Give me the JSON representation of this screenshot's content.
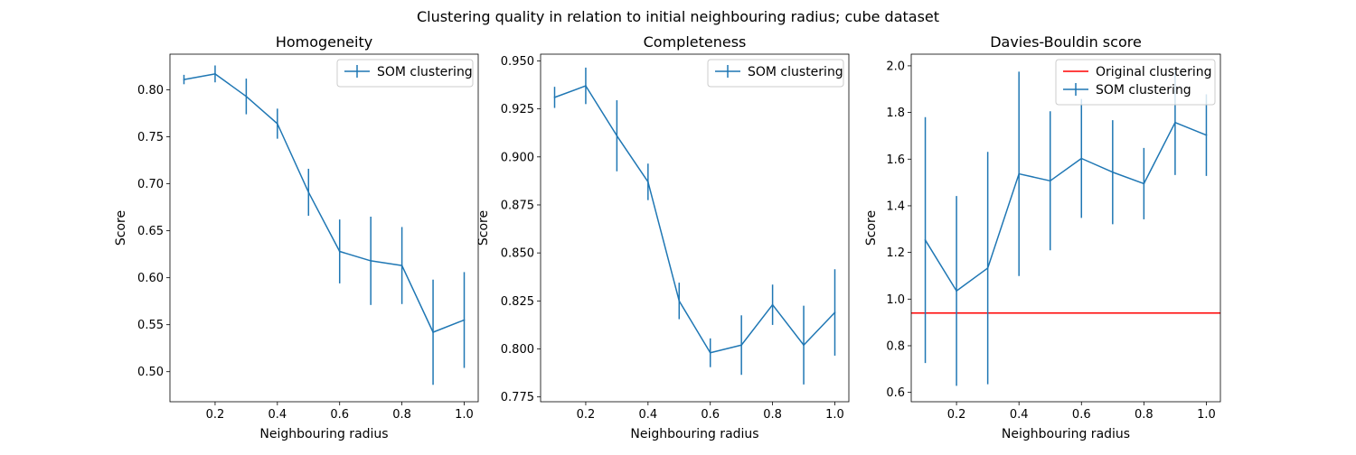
{
  "suptitle": "Clustering quality in relation to initial neighbouring radius; cube dataset",
  "colors": {
    "series": "#1f77b4",
    "reference": "#ff0000"
  },
  "chart_data": [
    {
      "type": "line",
      "title": "Homogeneity",
      "xlabel": "Neighbouring radius",
      "ylabel": "Score",
      "xlim": [
        0.055,
        1.045
      ],
      "ylim": [
        0.468,
        0.838
      ],
      "xticks": [
        0.2,
        0.4,
        0.6,
        0.8,
        1.0
      ],
      "xtick_labels": [
        "0.2",
        "0.4",
        "0.6",
        "0.8",
        "1.0"
      ],
      "yticks": [
        0.5,
        0.55,
        0.6,
        0.65,
        0.7,
        0.75,
        0.8
      ],
      "ytick_labels": [
        "0.50",
        "0.55",
        "0.60",
        "0.65",
        "0.70",
        "0.75",
        "0.80"
      ],
      "legend_position": "upper-right",
      "series": [
        {
          "name": "SOM clustering",
          "errorbar": true,
          "x": [
            0.1,
            0.2,
            0.3,
            0.4,
            0.5,
            0.6,
            0.7,
            0.8,
            0.9,
            1.0
          ],
          "y": [
            0.811,
            0.817,
            0.793,
            0.764,
            0.691,
            0.628,
            0.618,
            0.613,
            0.542,
            0.555
          ],
          "err": [
            0.005,
            0.009,
            0.019,
            0.016,
            0.025,
            0.034,
            0.047,
            0.041,
            0.056,
            0.051
          ]
        }
      ],
      "hlines": []
    },
    {
      "type": "line",
      "title": "Completeness",
      "xlabel": "Neighbouring radius",
      "ylabel": "Score",
      "xlim": [
        0.055,
        1.045
      ],
      "ylim": [
        0.7725,
        0.9535
      ],
      "xticks": [
        0.2,
        0.4,
        0.6,
        0.8,
        1.0
      ],
      "xtick_labels": [
        "0.2",
        "0.4",
        "0.6",
        "0.8",
        "1.0"
      ],
      "yticks": [
        0.775,
        0.8,
        0.825,
        0.85,
        0.875,
        0.9,
        0.925,
        0.95
      ],
      "ytick_labels": [
        "0.775",
        "0.800",
        "0.825",
        "0.850",
        "0.875",
        "0.900",
        "0.925",
        "0.950"
      ],
      "legend_position": "upper-right",
      "series": [
        {
          "name": "SOM clustering",
          "errorbar": true,
          "x": [
            0.1,
            0.2,
            0.3,
            0.4,
            0.5,
            0.6,
            0.7,
            0.8,
            0.9,
            1.0
          ],
          "y": [
            0.931,
            0.937,
            0.911,
            0.887,
            0.825,
            0.798,
            0.802,
            0.823,
            0.802,
            0.819
          ],
          "err": [
            0.0055,
            0.0095,
            0.0185,
            0.0095,
            0.0095,
            0.0075,
            0.0155,
            0.0105,
            0.0205,
            0.0225
          ]
        }
      ],
      "hlines": []
    },
    {
      "type": "line",
      "title": "Davies-Bouldin score",
      "xlabel": "Neighbouring radius",
      "ylabel": "Score",
      "xlim": [
        0.055,
        1.045
      ],
      "ylim": [
        0.56,
        2.05
      ],
      "xticks": [
        0.2,
        0.4,
        0.6,
        0.8,
        1.0
      ],
      "xtick_labels": [
        "0.2",
        "0.4",
        "0.6",
        "0.8",
        "1.0"
      ],
      "yticks": [
        0.6,
        0.8,
        1.0,
        1.2,
        1.4,
        1.6,
        1.8,
        2.0
      ],
      "ytick_labels": [
        "0.6",
        "0.8",
        "1.0",
        "1.2",
        "1.4",
        "1.6",
        "1.8",
        "2.0"
      ],
      "legend_position": "upper-right",
      "series": [
        {
          "name": "SOM clustering",
          "errorbar": true,
          "x": [
            0.1,
            0.2,
            0.3,
            0.4,
            0.5,
            0.6,
            0.7,
            0.8,
            0.9,
            1.0
          ],
          "y": [
            1.253,
            1.035,
            1.133,
            1.537,
            1.507,
            1.603,
            1.544,
            1.495,
            1.757,
            1.703
          ],
          "err": [
            0.527,
            0.407,
            0.498,
            0.438,
            0.298,
            0.255,
            0.223,
            0.153,
            0.225,
            0.175
          ]
        }
      ],
      "hlines": [
        {
          "name": "Original clustering",
          "y": 0.94
        }
      ]
    }
  ]
}
